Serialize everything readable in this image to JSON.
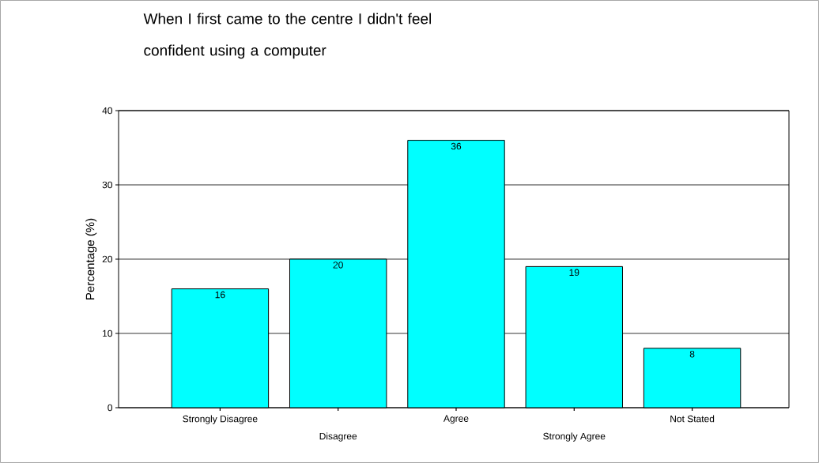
{
  "chart_data": {
    "type": "bar",
    "title": "When I first came to the centre I didn't feel confident using a computer",
    "ylabel": "Percentage (%)",
    "categories": [
      "Strongly Disagree",
      "Disagree",
      "Agree",
      "Strongly Agree",
      "Not Stated"
    ],
    "values": [
      16,
      20,
      36,
      19,
      8
    ],
    "value_labels": [
      "16",
      "20",
      "36",
      "19",
      "8"
    ],
    "color": "#00ffff",
    "ylim": [
      0,
      40
    ],
    "yticks": [
      0,
      10,
      20,
      30,
      40
    ],
    "grid": "y"
  }
}
